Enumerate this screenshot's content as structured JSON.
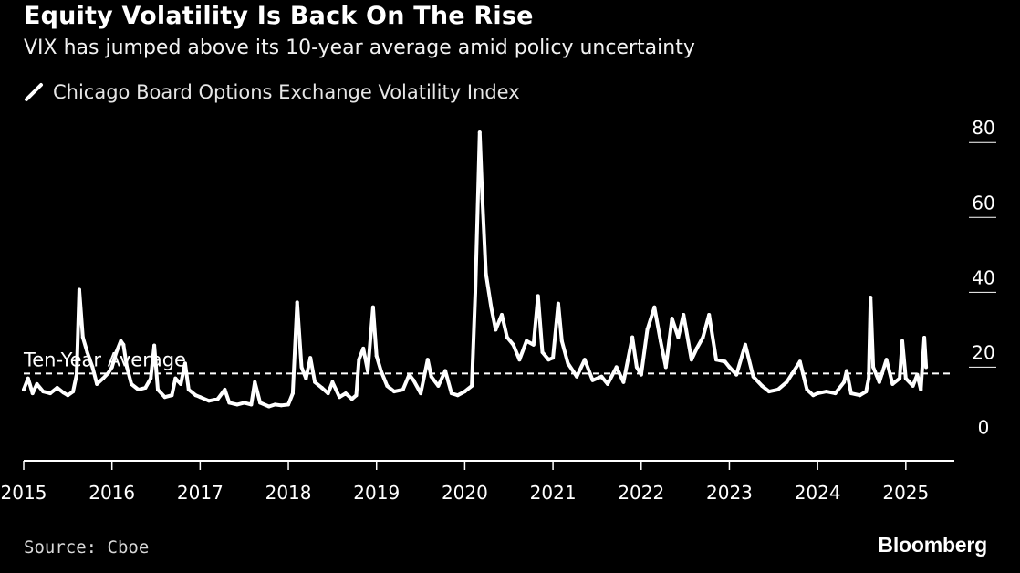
{
  "colors": {
    "background": "#000000",
    "series": "#ffffff",
    "text": "#ffffff",
    "axis": "#ffffff"
  },
  "footer": {
    "source": "Source: Cboe",
    "brand": "Bloomberg"
  },
  "chart_data": {
    "type": "line",
    "title": "Equity Volatility Is Back On The Rise",
    "subtitle": "VIX has jumped above its 10-year average amid policy uncertainty",
    "xlabel": "",
    "ylabel": "",
    "xlim": [
      2015.0,
      2025.55
    ],
    "ylim": [
      -5,
      82
    ],
    "y_ticks": [
      0,
      20,
      40,
      60,
      80
    ],
    "x_ticks": [
      {
        "label": "2015",
        "value": 2015.0
      },
      {
        "label": "2016",
        "value": 2016.0
      },
      {
        "label": "2017",
        "value": 2017.0
      },
      {
        "label": "2018",
        "value": 2018.0
      },
      {
        "label": "2019",
        "value": 2019.0
      },
      {
        "label": "2020",
        "value": 2020.0
      },
      {
        "label": "2021",
        "value": 2021.0
      },
      {
        "label": "2022",
        "value": 2022.0
      },
      {
        "label": "2023",
        "value": 2023.0
      },
      {
        "label": "2024",
        "value": 2024.0
      },
      {
        "label": "2025",
        "value": 2025.0
      }
    ],
    "legend": {
      "position": "top-left",
      "entries": [
        "Chicago Board Options Exchange Volatility Index"
      ]
    },
    "reference_line": {
      "label": "Ten-Year Average",
      "value": 18.3,
      "style": "dashed"
    },
    "series": [
      {
        "name": "Chicago Board Options Exchange Volatility Index",
        "points": [
          [
            2015.0,
            14.0
          ],
          [
            2015.05,
            17.0
          ],
          [
            2015.1,
            13.0
          ],
          [
            2015.15,
            15.5
          ],
          [
            2015.22,
            13.5
          ],
          [
            2015.3,
            13.0
          ],
          [
            2015.38,
            14.5
          ],
          [
            2015.45,
            13.2
          ],
          [
            2015.5,
            12.5
          ],
          [
            2015.56,
            13.5
          ],
          [
            2015.6,
            18.0
          ],
          [
            2015.63,
            40.7
          ],
          [
            2015.67,
            28.0
          ],
          [
            2015.72,
            24.0
          ],
          [
            2015.78,
            20.0
          ],
          [
            2015.83,
            15.5
          ],
          [
            2015.9,
            17.0
          ],
          [
            2015.96,
            18.5
          ],
          [
            2016.0,
            20.0
          ],
          [
            2016.05,
            24.0
          ],
          [
            2016.1,
            27.0
          ],
          [
            2016.13,
            26.0
          ],
          [
            2016.17,
            20.0
          ],
          [
            2016.22,
            15.5
          ],
          [
            2016.3,
            14.0
          ],
          [
            2016.38,
            14.5
          ],
          [
            2016.44,
            17.0
          ],
          [
            2016.48,
            25.8
          ],
          [
            2016.52,
            14.0
          ],
          [
            2016.6,
            12.0
          ],
          [
            2016.68,
            12.5
          ],
          [
            2016.72,
            17.0
          ],
          [
            2016.78,
            15.5
          ],
          [
            2016.83,
            21.0
          ],
          [
            2016.87,
            14.0
          ],
          [
            2016.95,
            12.5
          ],
          [
            2017.0,
            12.0
          ],
          [
            2017.1,
            11.0
          ],
          [
            2017.2,
            11.5
          ],
          [
            2017.28,
            14.0
          ],
          [
            2017.33,
            10.5
          ],
          [
            2017.42,
            10.0
          ],
          [
            2017.5,
            10.5
          ],
          [
            2017.58,
            10.0
          ],
          [
            2017.62,
            16.0
          ],
          [
            2017.68,
            10.5
          ],
          [
            2017.78,
            9.5
          ],
          [
            2017.85,
            10.0
          ],
          [
            2017.92,
            9.8
          ],
          [
            2018.0,
            10.0
          ],
          [
            2018.05,
            13.0
          ],
          [
            2018.1,
            37.3
          ],
          [
            2018.15,
            20.0
          ],
          [
            2018.2,
            17.0
          ],
          [
            2018.25,
            22.5
          ],
          [
            2018.3,
            16.0
          ],
          [
            2018.38,
            14.5
          ],
          [
            2018.45,
            13.0
          ],
          [
            2018.5,
            16.0
          ],
          [
            2018.58,
            12.0
          ],
          [
            2018.65,
            13.0
          ],
          [
            2018.72,
            11.5
          ],
          [
            2018.77,
            12.5
          ],
          [
            2018.8,
            22.0
          ],
          [
            2018.85,
            25.0
          ],
          [
            2018.9,
            19.0
          ],
          [
            2018.96,
            36.0
          ],
          [
            2019.0,
            23.0
          ],
          [
            2019.05,
            19.0
          ],
          [
            2019.12,
            15.0
          ],
          [
            2019.2,
            13.5
          ],
          [
            2019.3,
            14.0
          ],
          [
            2019.37,
            18.0
          ],
          [
            2019.42,
            16.5
          ],
          [
            2019.5,
            13.0
          ],
          [
            2019.58,
            22.0
          ],
          [
            2019.62,
            17.5
          ],
          [
            2019.7,
            15.0
          ],
          [
            2019.78,
            19.0
          ],
          [
            2019.85,
            13.0
          ],
          [
            2019.92,
            12.5
          ],
          [
            2020.0,
            13.5
          ],
          [
            2020.08,
            15.0
          ],
          [
            2020.12,
            40.0
          ],
          [
            2020.17,
            82.7
          ],
          [
            2020.2,
            65.0
          ],
          [
            2020.24,
            45.0
          ],
          [
            2020.3,
            36.0
          ],
          [
            2020.35,
            30.0
          ],
          [
            2020.42,
            34.0
          ],
          [
            2020.48,
            28.0
          ],
          [
            2020.55,
            26.0
          ],
          [
            2020.62,
            22.0
          ],
          [
            2020.7,
            27.0
          ],
          [
            2020.78,
            26.0
          ],
          [
            2020.83,
            39.0
          ],
          [
            2020.88,
            24.0
          ],
          [
            2020.95,
            22.0
          ],
          [
            2021.0,
            22.5
          ],
          [
            2021.06,
            37.0
          ],
          [
            2021.1,
            27.0
          ],
          [
            2021.17,
            21.0
          ],
          [
            2021.27,
            17.5
          ],
          [
            2021.36,
            22.0
          ],
          [
            2021.45,
            16.5
          ],
          [
            2021.55,
            17.5
          ],
          [
            2021.62,
            15.5
          ],
          [
            2021.72,
            20.0
          ],
          [
            2021.8,
            16.0
          ],
          [
            2021.9,
            28.0
          ],
          [
            2021.95,
            20.0
          ],
          [
            2022.0,
            18.0
          ],
          [
            2022.07,
            30.0
          ],
          [
            2022.15,
            36.0
          ],
          [
            2022.22,
            27.0
          ],
          [
            2022.28,
            20.0
          ],
          [
            2022.35,
            33.0
          ],
          [
            2022.42,
            28.0
          ],
          [
            2022.48,
            34.0
          ],
          [
            2022.57,
            22.0
          ],
          [
            2022.63,
            25.0
          ],
          [
            2022.7,
            28.0
          ],
          [
            2022.77,
            34.0
          ],
          [
            2022.85,
            22.0
          ],
          [
            2022.95,
            21.5
          ],
          [
            2023.0,
            20.0
          ],
          [
            2023.08,
            18.0
          ],
          [
            2023.18,
            26.0
          ],
          [
            2023.27,
            17.5
          ],
          [
            2023.37,
            15.0
          ],
          [
            2023.45,
            13.5
          ],
          [
            2023.55,
            14.0
          ],
          [
            2023.65,
            16.0
          ],
          [
            2023.8,
            21.5
          ],
          [
            2023.88,
            14.0
          ],
          [
            2023.95,
            12.5
          ],
          [
            2024.0,
            13.0
          ],
          [
            2024.1,
            13.5
          ],
          [
            2024.2,
            13.0
          ],
          [
            2024.3,
            16.0
          ],
          [
            2024.33,
            19.0
          ],
          [
            2024.38,
            13.0
          ],
          [
            2024.48,
            12.5
          ],
          [
            2024.55,
            13.5
          ],
          [
            2024.58,
            17.0
          ],
          [
            2024.6,
            38.6
          ],
          [
            2024.63,
            20.0
          ],
          [
            2024.7,
            16.0
          ],
          [
            2024.78,
            22.0
          ],
          [
            2024.85,
            15.5
          ],
          [
            2024.93,
            17.0
          ],
          [
            2024.96,
            27.0
          ],
          [
            2025.0,
            17.0
          ],
          [
            2025.08,
            15.0
          ],
          [
            2025.13,
            18.0
          ],
          [
            2025.17,
            14.0
          ],
          [
            2025.21,
            27.9
          ],
          [
            2025.23,
            20.0
          ]
        ]
      }
    ]
  }
}
